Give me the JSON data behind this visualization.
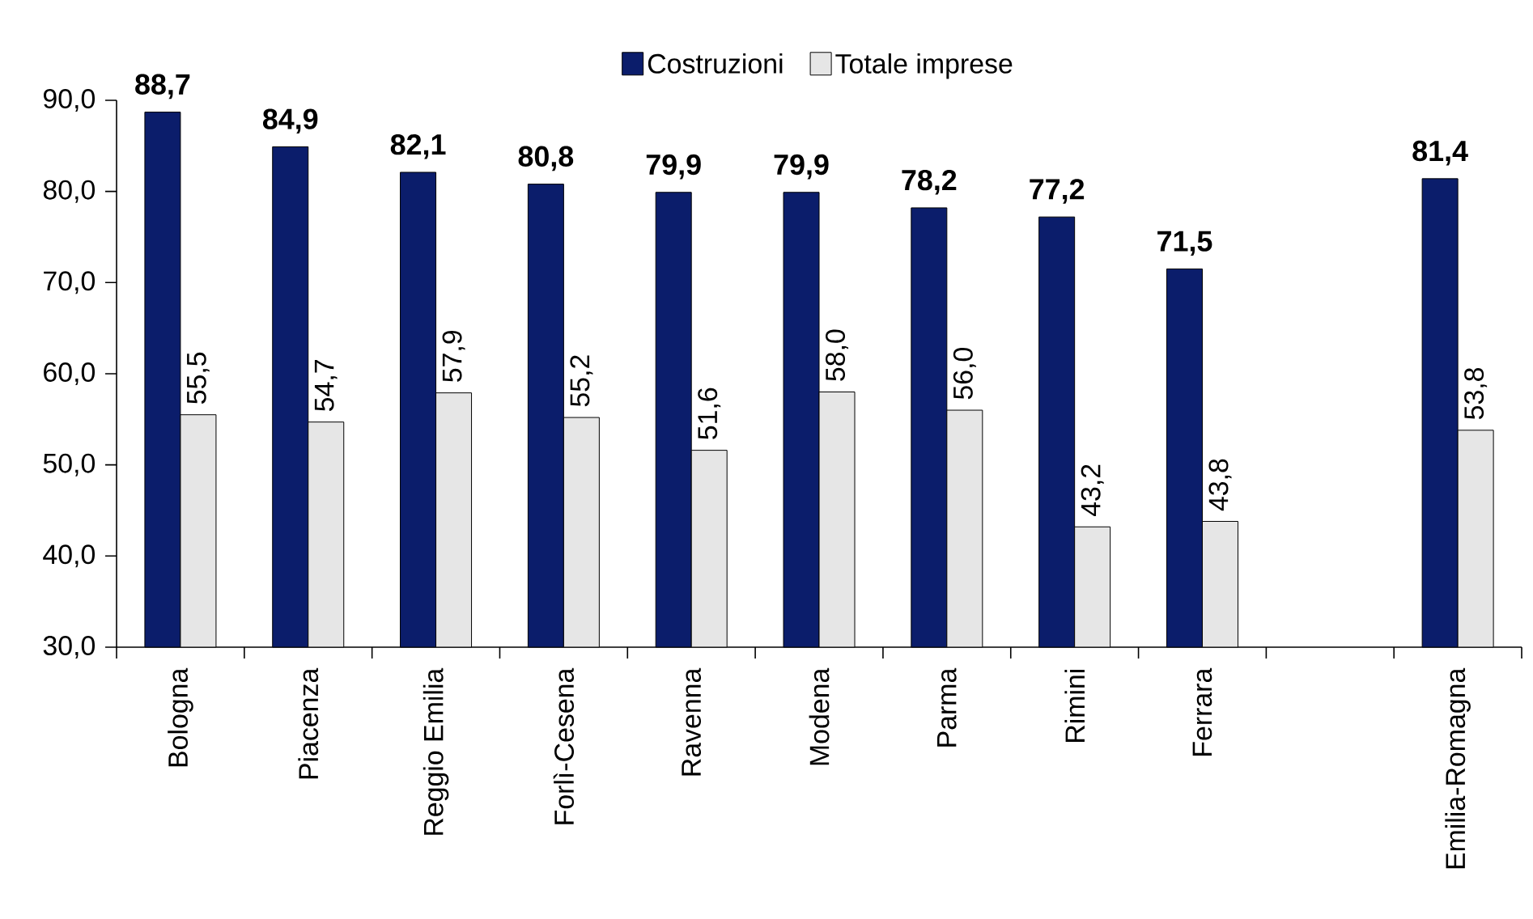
{
  "chart_data": {
    "type": "bar",
    "categories": [
      "Bologna",
      "Piacenza",
      "Reggio Emilia",
      "Forlì-Cesena",
      "Ravenna",
      "Modena",
      "Parma",
      "Rimini",
      "Ferrara",
      null,
      "Emilia-Romagna"
    ],
    "series": [
      {
        "name": "Costruzioni",
        "color": "#0b1d6b",
        "values": [
          88.7,
          84.9,
          82.1,
          80.8,
          79.9,
          79.9,
          78.2,
          77.2,
          71.5,
          null,
          81.4
        ],
        "value_labels": [
          "88,7",
          "84,9",
          "82,1",
          "80,8",
          "79,9",
          "79,9",
          "78,2",
          "77,2",
          "71,5",
          null,
          "81,4"
        ]
      },
      {
        "name": "Totale imprese",
        "color": "#e6e6e6",
        "values": [
          55.5,
          54.7,
          57.9,
          55.2,
          51.6,
          58.0,
          56.0,
          43.2,
          43.8,
          null,
          53.8
        ],
        "value_labels": [
          "55,5",
          "54,7",
          "57,9",
          "55,2",
          "51,6",
          "58,0",
          "56,0",
          "43,2",
          "43,8",
          null,
          "53,8"
        ]
      }
    ],
    "ylim": [
      30,
      90
    ],
    "yticks": [
      {
        "value": 30,
        "label": "30,0"
      },
      {
        "value": 40,
        "label": "40,0"
      },
      {
        "value": 50,
        "label": "50,0"
      },
      {
        "value": 60,
        "label": "60,0"
      },
      {
        "value": 70,
        "label": "70,0"
      },
      {
        "value": 80,
        "label": "80,0"
      },
      {
        "value": 90,
        "label": "90,0"
      }
    ],
    "legend": "top",
    "grid": false
  }
}
